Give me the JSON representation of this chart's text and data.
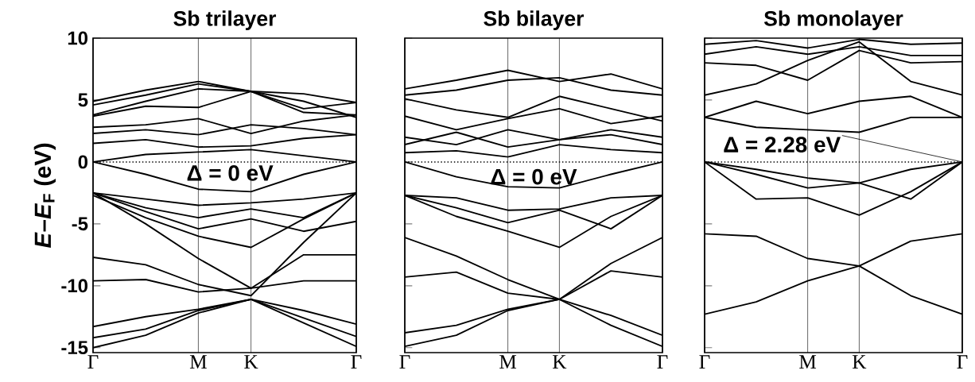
{
  "chart_data": [
    {
      "type": "line",
      "title": "Sb trilayer",
      "ylabel": "*E*–*E*$_{F}$ (eV)",
      "categories": [
        "Γ",
        null,
        "M",
        "K",
        null,
        "Γ"
      ],
      "ylim": [
        -15.4,
        10
      ],
      "yticks": [
        -15,
        -10,
        -5,
        0,
        5,
        10
      ],
      "grid": "x",
      "ref_lines": [
        {
          "axis": "y",
          "value": 0,
          "line_style": "dotted"
        }
      ],
      "annotations": [
        "Δ = 0 eV"
      ],
      "series": [
        {
          "color": "#000000",
          "values": [
            -15.0,
            -14.0,
            -12.2,
            -11.1,
            -13.0,
            -14.9
          ]
        },
        {
          "color": "#000000",
          "values": [
            -14.2,
            -13.5,
            -12.0,
            -11.1,
            -12.6,
            -14.1
          ]
        },
        {
          "color": "#000000",
          "values": [
            -13.3,
            -12.5,
            -11.9,
            -11.1,
            -12.0,
            -13.1
          ]
        },
        {
          "color": "#000000",
          "values": [
            -9.6,
            -9.5,
            -10.5,
            -10.2,
            -9.6,
            -9.6
          ]
        },
        {
          "color": "#000000",
          "values": [
            -7.7,
            -8.3,
            -9.9,
            -10.8,
            -6.5,
            -2.5
          ]
        },
        {
          "color": "#000000",
          "values": [
            -2.5,
            -5.0,
            -7.8,
            -10.2,
            -7.5,
            -7.5
          ]
        },
        {
          "color": "#000000",
          "values": [
            0,
            -1.0,
            -2.2,
            -2.4,
            -1.0,
            0
          ]
        },
        {
          "color": "#000000",
          "values": [
            -2.5,
            -3.0,
            -3.5,
            -3.3,
            -3.0,
            -2.5
          ]
        },
        {
          "color": "#000000",
          "values": [
            -2.5,
            -3.7,
            -4.5,
            -3.8,
            -4.5,
            -2.5
          ]
        },
        {
          "color": "#000000",
          "values": [
            -2.5,
            -4.0,
            -5.4,
            -4.6,
            -5.6,
            -4.8
          ]
        },
        {
          "color": "#000000",
          "values": [
            -2.7,
            -4.5,
            -6.0,
            -6.9,
            -4.6,
            -2.5
          ]
        },
        {
          "color": "#000000",
          "values": [
            0,
            0.6,
            0.8,
            1.0,
            0.5,
            0
          ]
        },
        {
          "color": "#000000",
          "values": [
            1.5,
            1.8,
            1.2,
            1.3,
            1.9,
            2.2
          ]
        },
        {
          "color": "#000000",
          "values": [
            2.3,
            2.6,
            2.2,
            3.0,
            2.7,
            2.2
          ]
        },
        {
          "color": "#000000",
          "values": [
            2.8,
            3.0,
            3.5,
            2.3,
            3.3,
            3.8
          ]
        },
        {
          "color": "#000000",
          "values": [
            3.7,
            4.5,
            4.4,
            5.7,
            4.0,
            3.8
          ]
        },
        {
          "color": "#000000",
          "values": [
            3.8,
            4.9,
            5.9,
            5.7,
            4.3,
            4.8
          ]
        },
        {
          "color": "#000000",
          "values": [
            4.6,
            5.4,
            6.3,
            5.7,
            5.5,
            4.8
          ]
        },
        {
          "color": "#000000",
          "values": [
            4.9,
            5.8,
            6.5,
            5.7,
            4.9,
            3.6
          ]
        }
      ]
    },
    {
      "type": "line",
      "title": "Sb bilayer",
      "categories": [
        "Γ",
        null,
        "M",
        "K",
        null,
        "Γ"
      ],
      "ylim": [
        -15.4,
        10
      ],
      "yticks": [
        -15,
        -10,
        -5,
        0,
        5,
        10
      ],
      "grid": "x",
      "tick_labels": "x",
      "ref_lines": [
        {
          "axis": "y",
          "value": 0,
          "line_style": "dotted"
        }
      ],
      "annotations": [
        "Δ = 0 eV"
      ],
      "series": [
        {
          "color": "#000000",
          "values": [
            -13.8,
            -13.2,
            -11.9,
            -11.1,
            -12.4,
            -14.0
          ]
        },
        {
          "color": "#000000",
          "values": [
            -14.9,
            -14.0,
            -12.0,
            -11.1,
            -13.2,
            -14.9
          ]
        },
        {
          "color": "#000000",
          "values": [
            -6.1,
            -7.6,
            -9.5,
            -11.1,
            -8.2,
            -6.1
          ]
        },
        {
          "color": "#000000",
          "values": [
            -9.3,
            -8.9,
            -10.6,
            -11.1,
            -8.8,
            -9.3
          ]
        },
        {
          "color": "#000000",
          "values": [
            0,
            -1.2,
            -2.0,
            -2.1,
            -1.0,
            0
          ]
        },
        {
          "color": "#000000",
          "values": [
            -2.7,
            -2.9,
            -3.9,
            -3.8,
            -2.9,
            -2.7
          ]
        },
        {
          "color": "#000000",
          "values": [
            -2.7,
            -3.7,
            -4.9,
            -3.9,
            -5.4,
            -2.7
          ]
        },
        {
          "color": "#000000",
          "values": [
            -2.7,
            -4.4,
            -5.6,
            -6.9,
            -4.4,
            -2.7
          ]
        },
        {
          "color": "#000000",
          "values": [
            0.75,
            0.9,
            0.4,
            1.4,
            1.0,
            0.75
          ]
        },
        {
          "color": "#000000",
          "values": [
            1.4,
            2.4,
            1.2,
            1.8,
            2.2,
            1.4
          ]
        },
        {
          "color": "#000000",
          "values": [
            2.0,
            1.4,
            2.6,
            1.8,
            2.6,
            2.0
          ]
        },
        {
          "color": "#000000",
          "values": [
            3.7,
            2.6,
            3.5,
            4.3,
            3.1,
            3.7
          ]
        },
        {
          "color": "#000000",
          "values": [
            5.1,
            4.2,
            3.6,
            5.3,
            4.3,
            3.3
          ]
        },
        {
          "color": "#000000",
          "values": [
            5.4,
            5.8,
            6.6,
            6.8,
            5.8,
            5.4
          ]
        },
        {
          "color": "#000000",
          "values": [
            5.9,
            6.6,
            7.4,
            6.5,
            7.1,
            5.9
          ]
        }
      ]
    },
    {
      "type": "line",
      "title": "Sb monolayer",
      "categories": [
        "Γ",
        null,
        "M",
        "K",
        null,
        "Γ"
      ],
      "ylim": [
        -15.4,
        10
      ],
      "yticks": [
        -15,
        -10,
        -5,
        0,
        5,
        10
      ],
      "grid": "x",
      "tick_labels": "x",
      "ref_lines": [
        {
          "axis": "y",
          "value": 0,
          "line_style": "dotted"
        }
      ],
      "annotations": [
        {
          "text": "Δ = 2.28 eV",
          "x": "Γ",
          "y": 0
        }
      ],
      "series": [
        {
          "color": "#000000",
          "values": [
            -12.3,
            -11.3,
            -9.6,
            -8.4,
            -6.4,
            -5.8
          ]
        },
        {
          "color": "#000000",
          "values": [
            -5.8,
            -6.0,
            -7.8,
            -8.4,
            -10.8,
            -12.3
          ]
        },
        {
          "color": "#000000",
          "values": [
            0,
            -0.6,
            -1.3,
            -1.7,
            -0.6,
            0
          ]
        },
        {
          "color": "#000000",
          "values": [
            0,
            -1.0,
            -2.1,
            -1.7,
            -3.0,
            0
          ]
        },
        {
          "color": "#000000",
          "values": [
            0,
            -3.0,
            -2.9,
            -4.3,
            -2.4,
            0
          ]
        },
        {
          "color": "#000000",
          "values": [
            3.6,
            2.8,
            2.6,
            2.4,
            3.6,
            3.6
          ]
        },
        {
          "color": "#000000",
          "values": [
            3.6,
            4.9,
            3.9,
            4.9,
            5.3,
            3.6
          ]
        },
        {
          "color": "#000000",
          "values": [
            5.4,
            6.3,
            8.2,
            9.7,
            6.5,
            5.4
          ]
        },
        {
          "color": "#000000",
          "values": [
            8.0,
            7.8,
            6.6,
            9.0,
            8.0,
            8.1
          ]
        },
        {
          "color": "#000000",
          "values": [
            8.7,
            9.3,
            8.7,
            9.3,
            8.6,
            8.6
          ]
        },
        {
          "color": "#000000",
          "values": [
            9.5,
            9.8,
            9.2,
            9.9,
            9.5,
            9.6
          ]
        }
      ]
    }
  ]
}
